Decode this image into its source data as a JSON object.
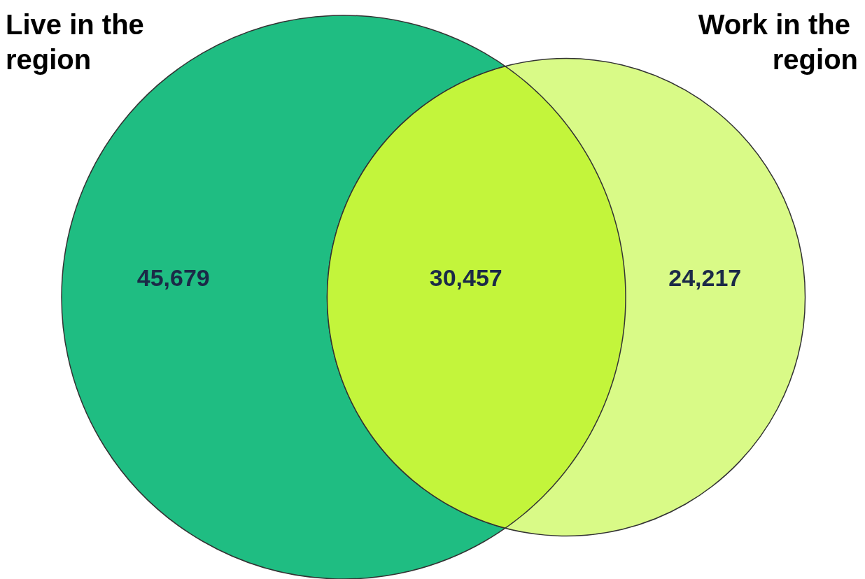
{
  "chart_data": {
    "type": "other",
    "annotations": [
      "Live in the region",
      "Work in the region"
    ],
    "categories": [
      null,
      null,
      null
    ],
    "values": [
      45679,
      30457,
      24217
    ],
    "value_labels": [
      "45,679",
      "30,457",
      "24,217"
    ],
    "colors": [
      "#1fbd82",
      "#c3f53b",
      "#d9fa87"
    ]
  }
}
